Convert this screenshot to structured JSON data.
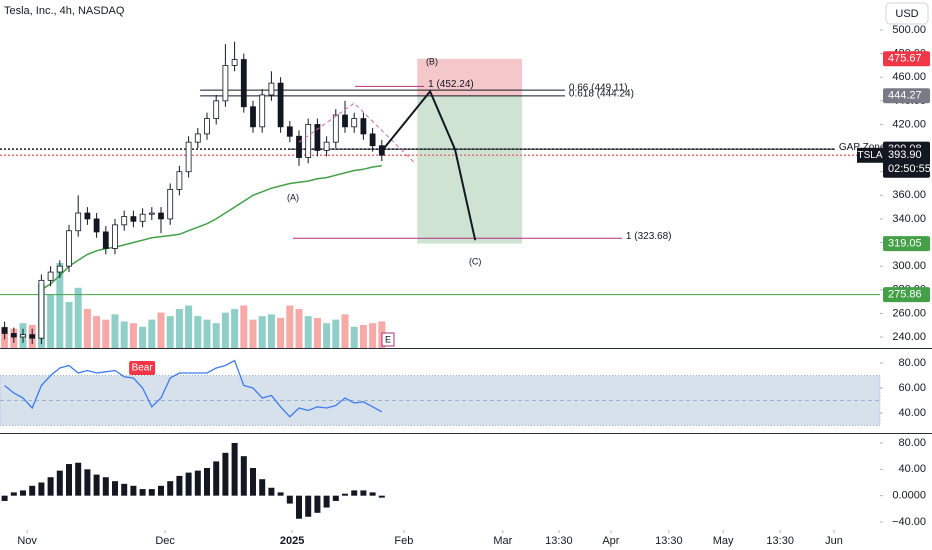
{
  "chart_data": [
    {
      "type": "candlestick",
      "title": "Tesla, Inc., 4h, NASDAQ",
      "symbol": "TSLA",
      "currency": "USD",
      "countdown": "02:50:55",
      "earnings": "E",
      "x": [
        1,
        3,
        5,
        7,
        9,
        11,
        13,
        15,
        17,
        19,
        21,
        23,
        25,
        27,
        29,
        31,
        33,
        35,
        37,
        39,
        41,
        43,
        45,
        47,
        49,
        51,
        53,
        55,
        57,
        59,
        61,
        63,
        65,
        67,
        69,
        71,
        73,
        75,
        77,
        79,
        81,
        83
      ],
      "open": [
        248,
        243,
        240,
        242,
        239,
        288,
        295,
        300,
        330,
        345,
        340,
        329,
        315,
        335,
        342,
        338,
        344,
        345,
        340,
        365,
        380,
        405,
        412,
        425,
        440,
        470,
        475,
        435,
        418,
        445,
        455,
        418,
        410,
        392,
        420,
        398,
        405,
        428,
        418,
        425,
        412,
        402
      ],
      "high": [
        253,
        248,
        247,
        247,
        293,
        300,
        305,
        335,
        360,
        350,
        345,
        334,
        340,
        347,
        347,
        349,
        350,
        350,
        370,
        385,
        410,
        417,
        430,
        445,
        488,
        490,
        480,
        440,
        450,
        465,
        460,
        423,
        415,
        425,
        425,
        410,
        433,
        440,
        430,
        430,
        417,
        407
      ],
      "low": [
        238,
        235,
        235,
        234,
        234,
        283,
        290,
        295,
        325,
        335,
        324,
        310,
        310,
        330,
        333,
        333,
        339,
        328,
        335,
        360,
        375,
        400,
        407,
        420,
        435,
        465,
        430,
        413,
        413,
        440,
        413,
        405,
        385,
        387,
        393,
        393,
        400,
        413,
        413,
        407,
        397,
        389
      ],
      "close": [
        243,
        240,
        242,
        239,
        288,
        295,
        300,
        330,
        345,
        340,
        329,
        315,
        335,
        342,
        338,
        344,
        345,
        340,
        365,
        380,
        405,
        412,
        425,
        440,
        470,
        475,
        435,
        418,
        445,
        455,
        418,
        410,
        392,
        420,
        398,
        405,
        428,
        418,
        425,
        412,
        402,
        394
      ],
      "volume": [
        60,
        55,
        70,
        65,
        180,
        150,
        240,
        130,
        170,
        110,
        90,
        80,
        95,
        75,
        70,
        60,
        80,
        100,
        90,
        110,
        120,
        90,
        80,
        70,
        100,
        110,
        120,
        80,
        90,
        95,
        85,
        120,
        110,
        90,
        85,
        70,
        80,
        95,
        60,
        65,
        70,
        75
      ],
      "up_color": "#ffffff",
      "down_color": "#131722",
      "volume_up_color": "#8fcfc8",
      "volume_down_color": "#f7a9a7",
      "ma": {
        "color": "#43a047",
        "values": [
          null,
          null,
          null,
          null,
          280,
          285,
          292,
          300,
          305,
          310,
          313,
          315,
          316,
          318,
          320,
          322,
          324,
          325,
          326,
          327,
          330,
          333,
          336,
          340,
          345,
          350,
          355,
          360,
          363,
          366,
          368,
          370,
          371,
          372,
          374,
          375,
          377,
          379,
          381,
          382,
          384,
          385
        ]
      },
      "xlim": [
        0,
        191.3
      ],
      "xticks": [
        {
          "value": 5.9,
          "label": "Nov"
        },
        {
          "value": 35.9,
          "label": "Dec"
        },
        {
          "value": 63.5,
          "label": "2025",
          "bold": true
        },
        {
          "value": 87.8,
          "label": "Feb"
        },
        {
          "value": 109.3,
          "label": "Mar"
        },
        {
          "value": 121.5,
          "label": "13:30"
        },
        {
          "value": 132.8,
          "label": "Apr"
        },
        {
          "value": 145.4,
          "label": "13:30"
        },
        {
          "value": 157.2,
          "label": "May"
        },
        {
          "value": 169.6,
          "label": "13:30"
        },
        {
          "value": 181.3,
          "label": "Jun"
        }
      ],
      "ylim": [
        230.7,
        525.4
      ],
      "yticks": [
        {
          "value": 240,
          "label": "240.00"
        },
        {
          "value": 260,
          "label": "260.00"
        },
        {
          "value": 280,
          "label": "280.00"
        },
        {
          "value": 300,
          "label": "300.00"
        },
        {
          "value": 320,
          "label": "320.00"
        },
        {
          "value": 340,
          "label": "340.00"
        },
        {
          "value": 360,
          "label": "360.00"
        },
        {
          "value": 380,
          "label": "380.00"
        },
        {
          "value": 400,
          "label": "400.00"
        },
        {
          "value": 420,
          "label": "420.00"
        },
        {
          "value": 440,
          "label": "440.00"
        },
        {
          "value": 460,
          "label": "460.00"
        },
        {
          "value": 480,
          "label": "480.00"
        },
        {
          "value": 500,
          "label": "500.00"
        }
      ],
      "position": {
        "x": [
          90.7,
          113.5
        ],
        "entry": 444.27,
        "stop": 475.67,
        "target": 319.05,
        "stop_color": "#f4c7cb",
        "target_color": "#cfe3d2"
      },
      "levels": [
        {
          "value": 399.08,
          "x": [
            0,
            181.5
          ],
          "style": "dotted",
          "color": "#131722",
          "label": "GAP Zone"
        },
        {
          "value": 399.08,
          "x": [
            63,
            181.5
          ],
          "style": "solid",
          "color": "#131722"
        },
        {
          "value": 393.9,
          "x": [
            0,
            191.3
          ],
          "style": "dotted",
          "color": "#e57373"
        },
        {
          "value": 444.24,
          "x": [
            43.5,
            122.8
          ],
          "style": "solid",
          "color": "#131722",
          "label": "0.618 (444.24)"
        },
        {
          "value": 449.11,
          "x": [
            43.5,
            122.8
          ],
          "style": "solid",
          "color": "#131722",
          "label": "0.66 (449.11)"
        },
        {
          "value": 452.24,
          "x": [
            77.2,
            92.2
          ],
          "style": "solid",
          "color": "#b0307e",
          "label": "1 (452.24)"
        },
        {
          "value": 323.68,
          "x": [
            63.7,
            135.2
          ],
          "style": "solid",
          "color": "#b0307e",
          "label": "1 (323.68)"
        },
        {
          "value": 275.86,
          "x": [
            0,
            191.3
          ],
          "style": "solid",
          "color": "#43a047"
        }
      ],
      "projection": {
        "color": "#131722",
        "x": [
          83.3,
          93.5,
          98.9,
          103.3
        ],
        "values": [
          399,
          448,
          399,
          322
        ]
      },
      "wave_curve": {
        "color": "#d36b9a",
        "x": [
          65,
          77,
          90
        ],
        "values": [
          405,
          438,
          388
        ]
      },
      "annotations": [
        {
          "text": "(A)",
          "x": 63.7,
          "y": 357.7,
          "color": "#f23645"
        },
        {
          "text": "(B)",
          "x": 93.9,
          "y": 472.9,
          "color": "#f23645"
        },
        {
          "text": "(C)",
          "x": 103.3,
          "y": 303.6,
          "color": "#f23645"
        }
      ],
      "price_labels": [
        {
          "value": 475.67,
          "color": "#f23645"
        },
        {
          "value": 444.27,
          "color": "#787b86"
        },
        {
          "value": 399.08,
          "color": "#131722"
        },
        {
          "value": 393.9,
          "label": "393.90",
          "color": "#131722",
          "last": true
        },
        {
          "value": 319.05,
          "color": "#43a047"
        },
        {
          "value": 275.86,
          "color": "#43a047"
        }
      ]
    },
    {
      "type": "line",
      "color": "#3d7bf0",
      "x": [
        1,
        3,
        5,
        7,
        9,
        11,
        13,
        15,
        17,
        19,
        21,
        23,
        25,
        27,
        29,
        31,
        33,
        35,
        37,
        39,
        41,
        43,
        45,
        47,
        49,
        51,
        53,
        55,
        57,
        59,
        61,
        63,
        65,
        67,
        69,
        71,
        73,
        75,
        77,
        79,
        81,
        83
      ],
      "values": [
        62,
        56,
        52,
        44,
        62,
        70,
        76,
        78,
        72,
        74,
        72,
        73,
        74,
        69,
        68,
        60,
        45,
        52,
        68,
        72,
        72,
        72,
        72,
        76,
        78,
        82,
        62,
        60,
        52,
        54,
        45,
        37,
        44,
        42,
        45,
        44,
        46,
        52,
        48,
        49,
        45,
        41
      ],
      "band": [
        30,
        70
      ],
      "band_color": "#d6e1ec",
      "midline": 50,
      "signal": {
        "text": "Bear",
        "x": 30.9,
        "y": 76,
        "color": "#f23645"
      },
      "xlim": [
        0,
        191.3
      ],
      "ylim": [
        24.8,
        90.4
      ],
      "yticks": [
        {
          "value": 40,
          "label": "40.00"
        },
        {
          "value": 60,
          "label": "60.00"
        },
        {
          "value": 80,
          "label": "80.00"
        }
      ]
    },
    {
      "type": "bar",
      "color": "#131722",
      "x": [
        1,
        3,
        5,
        7,
        9,
        11,
        13,
        15,
        17,
        19,
        21,
        23,
        25,
        27,
        29,
        31,
        33,
        35,
        37,
        39,
        41,
        43,
        45,
        47,
        49,
        51,
        53,
        55,
        57,
        59,
        61,
        63,
        65,
        67,
        69,
        71,
        73,
        75,
        77,
        79,
        81,
        83
      ],
      "values": [
        -8,
        5,
        8,
        15,
        20,
        28,
        38,
        48,
        50,
        40,
        32,
        28,
        22,
        18,
        15,
        10,
        10,
        15,
        22,
        30,
        35,
        38,
        42,
        52,
        65,
        80,
        60,
        42,
        25,
        12,
        5,
        -12,
        -35,
        -32,
        -26,
        -18,
        -8,
        3,
        8,
        8,
        5,
        -3
      ],
      "xlim": [
        0,
        191.3
      ],
      "ylim": [
        -52.1,
        92.1
      ],
      "yticks": [
        {
          "value": -40,
          "label": "−40.00"
        },
        {
          "value": 0,
          "label": "0.0000"
        },
        {
          "value": 40,
          "label": "40.00"
        },
        {
          "value": 80,
          "label": "80.00"
        }
      ]
    }
  ]
}
